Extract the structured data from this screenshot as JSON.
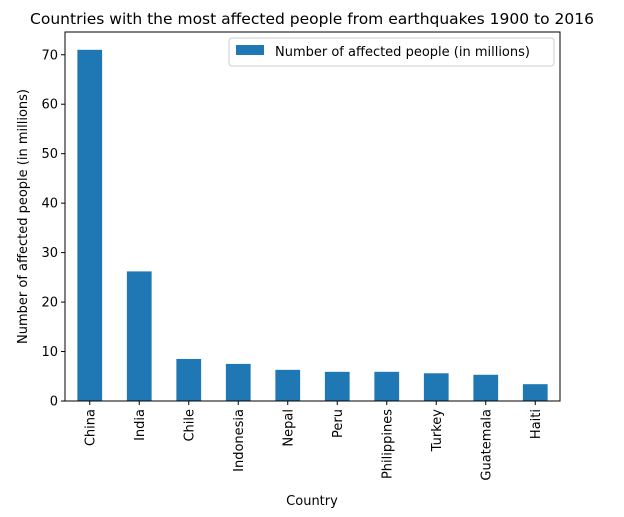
{
  "chart_data": {
    "type": "bar",
    "title": "Countries with the most affected people from earthquakes 1900 to 2016",
    "xlabel": "Country",
    "ylabel": "Number of affected people (in millions)",
    "categories": [
      "China",
      "India",
      "Chile",
      "Indonesia",
      "Nepal",
      "Peru",
      "Philippines",
      "Turkey",
      "Guatemala",
      "Haiti"
    ],
    "series": [
      {
        "name": "Number of affected people (in millions)",
        "values": [
          71.0,
          26.2,
          8.5,
          7.5,
          6.3,
          5.9,
          5.9,
          5.6,
          5.3,
          3.4
        ],
        "color": "#1f77b4"
      }
    ],
    "ylim": [
      0,
      74.6
    ],
    "yticks": [
      0,
      10,
      20,
      30,
      40,
      50,
      60,
      70
    ],
    "legend": "top-right",
    "grid": false
  }
}
